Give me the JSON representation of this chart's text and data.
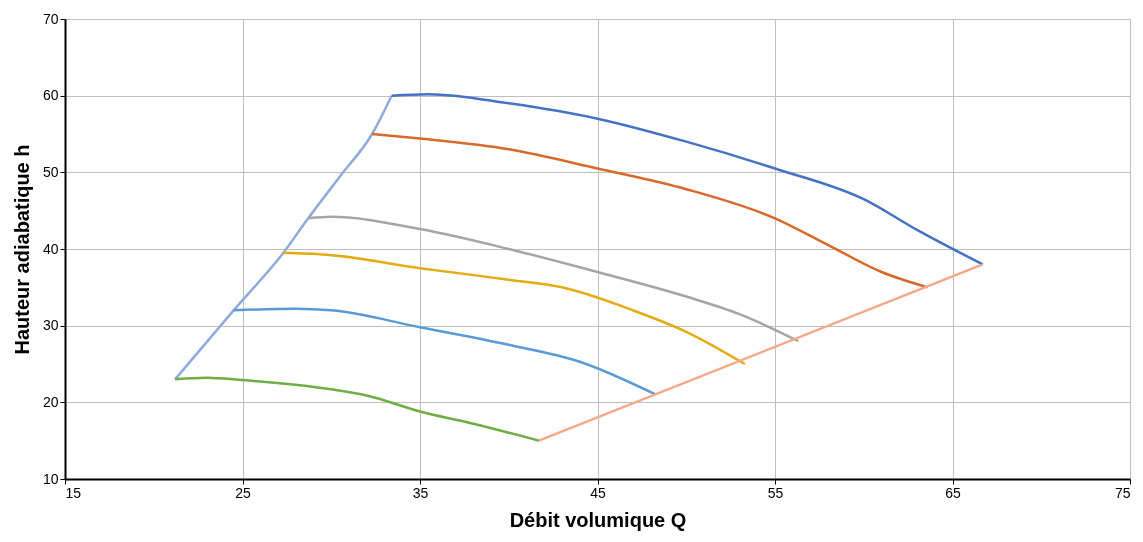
{
  "chart_data": {
    "type": "line",
    "xlabel": "Débit volumique Q",
    "ylabel": "Hauteur adiabatique h",
    "xlim": [
      15,
      75
    ],
    "xticks": [
      15,
      25,
      35,
      45,
      55,
      65,
      75
    ],
    "ylim": [
      10,
      70
    ],
    "yticks": [
      10,
      20,
      30,
      40,
      50,
      60,
      70
    ],
    "grid": true,
    "marker": "none",
    "line_style": "solid",
    "series": [
      {
        "color": "#8faadc",
        "x": [
          21.2,
          24.5,
          27.3,
          28.7,
          30.5,
          32.3,
          33.4
        ],
        "values": [
          23,
          32,
          39.5,
          44,
          49.5,
          55,
          60
        ]
      },
      {
        "color": "#4472c4",
        "x": [
          33.4,
          35.5,
          40,
          45,
          50,
          55,
          60,
          63,
          66.7
        ],
        "values": [
          60,
          60.2,
          59,
          57,
          54,
          50.5,
          46.5,
          42.5,
          38
        ]
      },
      {
        "color": "#d8692a",
        "x": [
          32.3,
          35,
          40,
          45,
          50,
          55,
          58,
          61,
          63.6
        ],
        "values": [
          55,
          54.4,
          53,
          50.5,
          47.8,
          44,
          40.5,
          37,
          35
        ]
      },
      {
        "color": "#a5a5a5",
        "x": [
          28.7,
          30,
          35,
          40,
          45,
          50,
          53,
          56.3
        ],
        "values": [
          44,
          44.2,
          42.6,
          40,
          37,
          33.8,
          31.5,
          28
        ]
      },
      {
        "color": "#e3ac14",
        "x": [
          27.3,
          30,
          35,
          40,
          43,
          47,
          50,
          53.3
        ],
        "values": [
          39.5,
          39.2,
          37.5,
          36,
          35,
          32,
          29.2,
          25
        ]
      },
      {
        "color": "#5b9bd5",
        "x": [
          24.5,
          28,
          30,
          35,
          40,
          44,
          48.3
        ],
        "values": [
          32,
          32.2,
          32,
          29.8,
          27.5,
          25.3,
          21
        ]
      },
      {
        "color": "#70ad47",
        "x": [
          21.2,
          23,
          25,
          30,
          32,
          35,
          38,
          41.7
        ],
        "values": [
          23,
          23.2,
          22.9,
          21.7,
          20.9,
          18.8,
          17.2,
          15
        ]
      },
      {
        "color": "#f4a88a",
        "x": [
          41.7,
          66.7
        ],
        "values": [
          15,
          38
        ]
      }
    ]
  }
}
